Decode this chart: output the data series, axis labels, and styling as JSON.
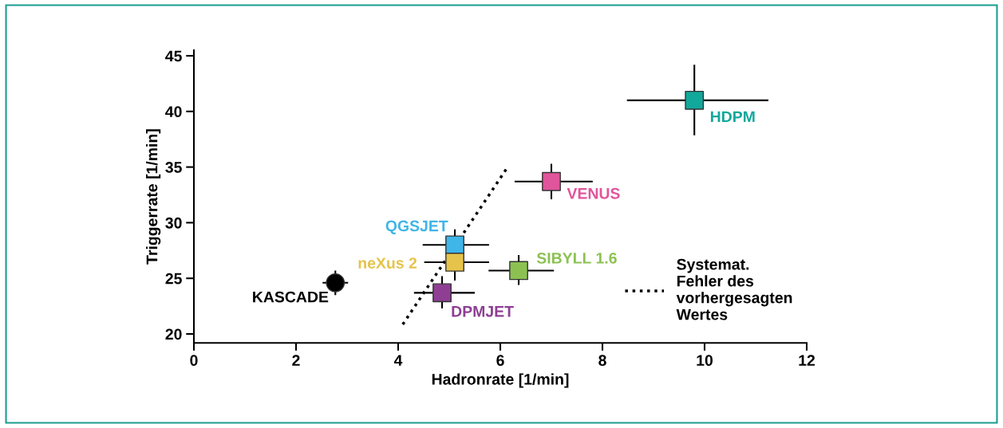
{
  "chart_data": {
    "type": "scatter",
    "xlabel": "Hadronrate [1/min]",
    "ylabel": "Triggerrate [1/min]",
    "xlim": [
      0,
      12
    ],
    "ylim": [
      19.2,
      45.5
    ],
    "xticks": [
      0,
      2,
      4,
      6,
      8,
      10,
      12
    ],
    "yticks": [
      20,
      25,
      30,
      35,
      40,
      45
    ],
    "grid": false,
    "legend": "bottom right",
    "series": [
      {
        "name": "KASCADE",
        "color": "#000000",
        "marker": "circle",
        "x": [
          2.77
        ],
        "values": [
          24.6
        ],
        "errors": [
          1.1
        ],
        "xerrors": [
          0.25
        ]
      },
      {
        "name": "HDPM",
        "color": "#13a89c",
        "marker": "square",
        "x": [
          9.8
        ],
        "values": [
          41.0
        ],
        "errors": [
          [
            37.85,
            44.2
          ]
        ],
        "xerrors": [
          [
            8.48,
            11.25
          ]
        ]
      },
      {
        "name": "VENUS",
        "color": "#e0559b",
        "marker": "square",
        "x": [
          7.0
        ],
        "values": [
          33.7
        ],
        "errors": [
          1.6
        ],
        "xerrors": [
          [
            6.28,
            7.81
          ]
        ]
      },
      {
        "name": "QGSJET",
        "color": "#3fb5e8",
        "marker": "square",
        "x": [
          5.11
        ],
        "values": [
          28.0
        ],
        "errors": [
          [
            28.0,
            29.4
          ]
        ],
        "xerrors": [
          [
            4.48,
            5.78
          ]
        ]
      },
      {
        "name": "neXus 2",
        "color": "#e6c34a",
        "marker": "square",
        "x": [
          5.11
        ],
        "values": [
          26.45
        ],
        "errors": [
          [
            24.8,
            26.45
          ]
        ],
        "xerrors": [
          [
            4.51,
            5.78
          ]
        ]
      },
      {
        "name": "SIBYLL 1.6",
        "color": "#8cc152",
        "marker": "square",
        "x": [
          6.36
        ],
        "values": [
          25.7
        ],
        "errors": [
          [
            24.4,
            27.1
          ]
        ],
        "xerrors": [
          [
            5.77,
            7.05
          ]
        ]
      },
      {
        "name": "DPMJET",
        "color": "#8e3f94",
        "marker": "square",
        "x": [
          4.86
        ],
        "values": [
          23.7
        ],
        "errors": [
          [
            22.3,
            25.2
          ]
        ],
        "xerrors": [
          [
            4.31,
            5.5
          ]
        ]
      },
      {
        "name": "Systemat.\nFehler des\nvorhergesagten\nWertes",
        "type": "line",
        "line_style": "dotted",
        "color": "#000000",
        "x": [
          4.09,
          6.14
        ],
        "values": [
          20.86,
          34.97
        ]
      }
    ]
  }
}
